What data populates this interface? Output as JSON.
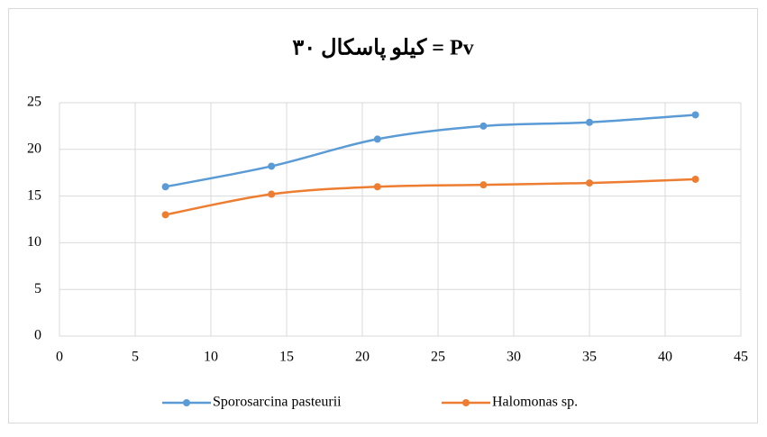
{
  "chart_data": {
    "type": "line",
    "title": "۳۰ کیلو پاسکال = Pv",
    "x": [
      7,
      14,
      21,
      28,
      35,
      42
    ],
    "series": [
      {
        "name": "Sporosarcina pasteurii",
        "color": "#5b9bd5",
        "values": [
          16,
          18.2,
          21.1,
          22.5,
          22.9,
          23.7
        ]
      },
      {
        "name": "Halomonas sp.",
        "color": "#ed7d31",
        "values": [
          13,
          15.2,
          16,
          16.2,
          16.4,
          16.8
        ]
      }
    ],
    "xlim": [
      0,
      45
    ],
    "xticks": [
      0,
      5,
      10,
      15,
      20,
      25,
      30,
      35,
      40,
      45
    ],
    "ylim": [
      0,
      25
    ],
    "yticks": [
      0,
      5,
      10,
      15,
      20,
      25
    ],
    "grid": true,
    "smooth": true,
    "legend": "bottom"
  }
}
